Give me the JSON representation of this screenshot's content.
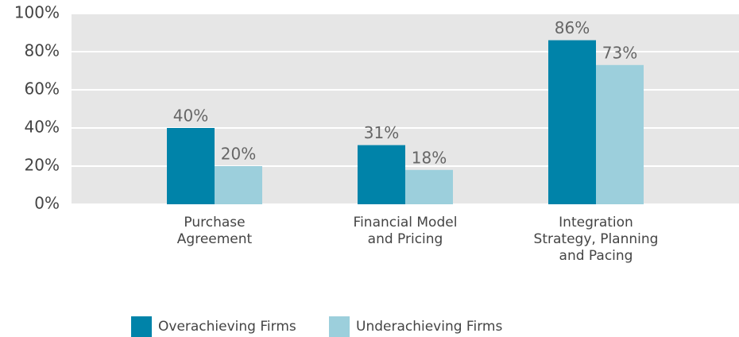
{
  "chart_data": {
    "type": "bar",
    "categories": [
      "Purchase\nAgreement",
      "Financial Model\nand Pricing",
      "Integration\nStrategy, Planning\nand Pacing"
    ],
    "series": [
      {
        "name": "Overachieving Firms",
        "color": "#0083a9",
        "values": [
          40,
          31,
          86
        ],
        "value_labels": [
          "40%",
          "31%",
          "86%"
        ]
      },
      {
        "name": "Underachieving Firms",
        "color": "#9ccfdc",
        "values": [
          20,
          18,
          73
        ],
        "value_labels": [
          "20%",
          "18%",
          "73%"
        ]
      }
    ],
    "ylim": [
      0,
      100
    ],
    "yticks": [
      {
        "value": 0,
        "label": "0%"
      },
      {
        "value": 20,
        "label": "20%"
      },
      {
        "value": 40,
        "label": "40%"
      },
      {
        "value": 60,
        "label": "60%"
      },
      {
        "value": 80,
        "label": "80%"
      },
      {
        "value": 100,
        "label": "100%"
      }
    ],
    "grid": true
  }
}
